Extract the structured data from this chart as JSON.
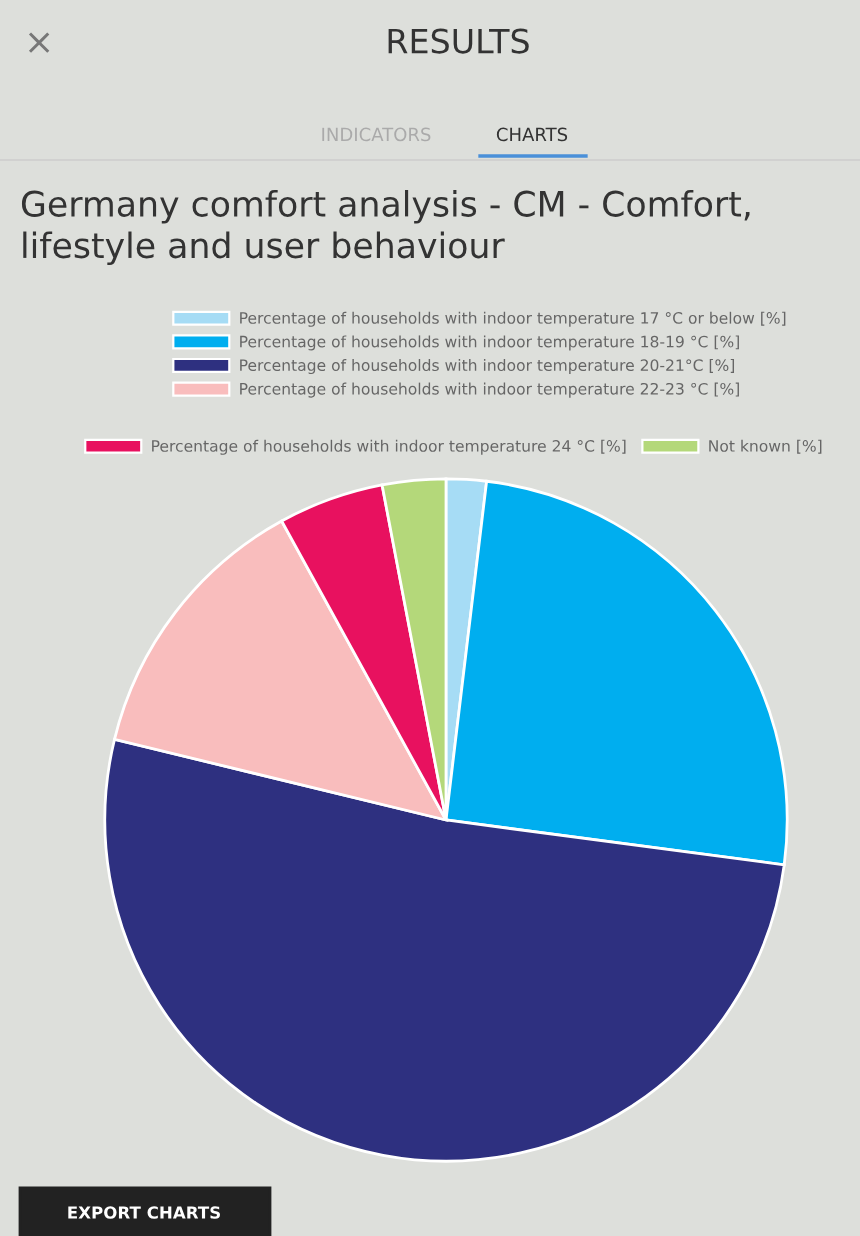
{
  "chart_data": {
    "type": "pie",
    "title": "Germany comfort analysis - CM - Comfort, lifestyle and user behaviour",
    "categories": [
      "Percentage of households with indoor temperature 17 °C or below [%]",
      "Percentage of households with indoor temperature 18-19 °C [%]",
      "Percentage of households with indoor temperature 20-21°C [%]",
      "Percentage of households with indoor temperature 22-23 °C [%]",
      "Percentage of households with indoor temperature 24 °C [%]",
      "Not known [%]"
    ],
    "values": [
      1.9,
      25.2,
      51.7,
      13.2,
      5.0,
      3.0
    ],
    "colors": [
      "#a6dcf5",
      "#00aeef",
      "#2e3080",
      "#f9bdbd",
      "#e8115f",
      "#b4d87a"
    ],
    "legend": "top",
    "annotations": [
      "×",
      "RESULTS",
      "INDICATORS",
      "CHARTS",
      "EXPORT CHARTS"
    ]
  }
}
